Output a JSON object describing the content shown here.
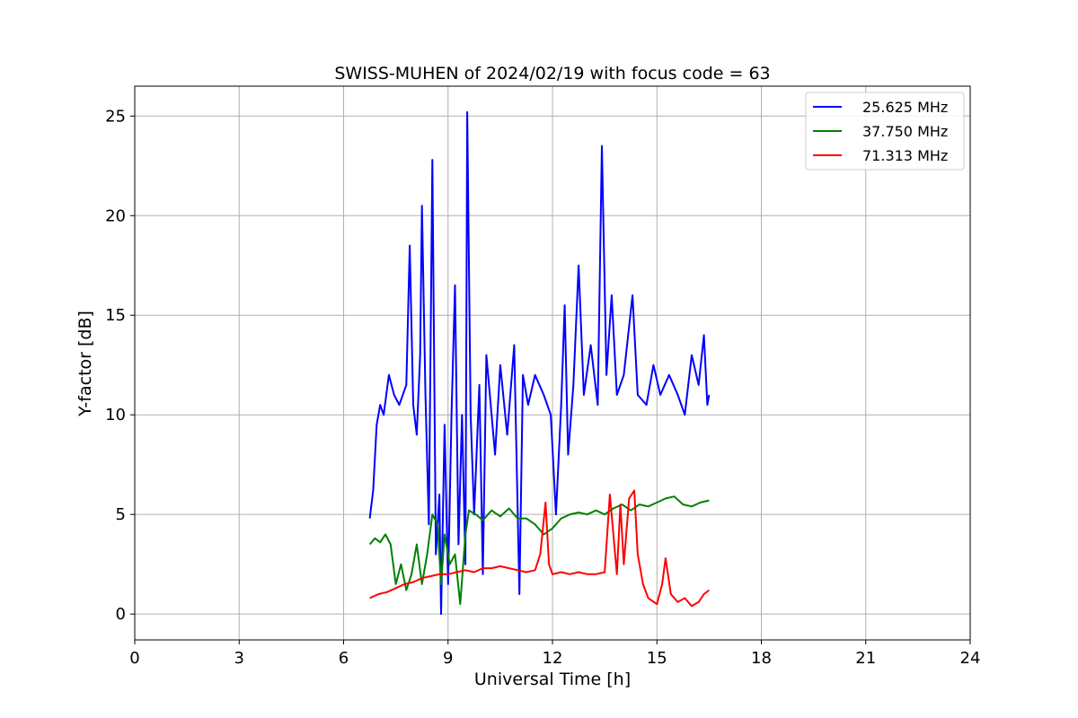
{
  "chart_data": {
    "type": "line",
    "title": "SWISS-MUHEN of 2024/02/19 with focus code = 63",
    "xlabel": "Universal Time [h]",
    "ylabel": "Y-factor [dB]",
    "xlim": [
      0,
      24
    ],
    "ylim": [
      -1.3,
      26.5
    ],
    "xticks": [
      0,
      3,
      6,
      9,
      12,
      15,
      18,
      21,
      24
    ],
    "yticks": [
      0,
      5,
      10,
      15,
      20,
      25
    ],
    "grid": true,
    "legend_position": "top-right",
    "series": [
      {
        "name": "25.625 MHz",
        "color": "#0000ff",
        "points": [
          [
            6.75,
            4.8
          ],
          [
            6.85,
            6.2
          ],
          [
            6.95,
            9.5
          ],
          [
            7.05,
            10.5
          ],
          [
            7.15,
            10.0
          ],
          [
            7.3,
            12.0
          ],
          [
            7.45,
            11.0
          ],
          [
            7.6,
            10.5
          ],
          [
            7.8,
            11.5
          ],
          [
            7.9,
            18.5
          ],
          [
            8.0,
            10.5
          ],
          [
            8.1,
            9.0
          ],
          [
            8.2,
            13.0
          ],
          [
            8.25,
            20.5
          ],
          [
            8.35,
            11.0
          ],
          [
            8.45,
            4.5
          ],
          [
            8.55,
            22.8
          ],
          [
            8.65,
            3.0
          ],
          [
            8.75,
            6.0
          ],
          [
            8.8,
            0.0
          ],
          [
            8.9,
            9.5
          ],
          [
            9.0,
            1.5
          ],
          [
            9.1,
            10.0
          ],
          [
            9.2,
            16.5
          ],
          [
            9.3,
            3.5
          ],
          [
            9.4,
            10.0
          ],
          [
            9.5,
            2.5
          ],
          [
            9.55,
            25.2
          ],
          [
            9.65,
            10.0
          ],
          [
            9.75,
            5.0
          ],
          [
            9.9,
            11.5
          ],
          [
            10.0,
            2.0
          ],
          [
            10.1,
            13.0
          ],
          [
            10.2,
            11.0
          ],
          [
            10.35,
            8.0
          ],
          [
            10.5,
            12.5
          ],
          [
            10.7,
            9.0
          ],
          [
            10.9,
            13.5
          ],
          [
            11.05,
            1.0
          ],
          [
            11.15,
            12.0
          ],
          [
            11.3,
            10.5
          ],
          [
            11.5,
            12.0
          ],
          [
            11.75,
            11.0
          ],
          [
            11.95,
            10.0
          ],
          [
            12.1,
            5.0
          ],
          [
            12.25,
            10.5
          ],
          [
            12.35,
            15.5
          ],
          [
            12.45,
            8.0
          ],
          [
            12.6,
            11.5
          ],
          [
            12.75,
            17.5
          ],
          [
            12.9,
            11.0
          ],
          [
            13.1,
            13.5
          ],
          [
            13.3,
            10.5
          ],
          [
            13.42,
            23.5
          ],
          [
            13.55,
            12.0
          ],
          [
            13.7,
            16.0
          ],
          [
            13.85,
            11.0
          ],
          [
            14.05,
            12.0
          ],
          [
            14.3,
            16.0
          ],
          [
            14.45,
            11.0
          ],
          [
            14.7,
            10.5
          ],
          [
            14.9,
            12.5
          ],
          [
            15.1,
            11.0
          ],
          [
            15.35,
            12.0
          ],
          [
            15.6,
            11.0
          ],
          [
            15.8,
            10.0
          ],
          [
            16.0,
            13.0
          ],
          [
            16.2,
            11.5
          ],
          [
            16.35,
            14.0
          ],
          [
            16.45,
            10.5
          ],
          [
            16.5,
            11.0
          ]
        ]
      },
      {
        "name": "37.750 MHz",
        "color": "#008000",
        "points": [
          [
            6.75,
            3.5
          ],
          [
            6.9,
            3.8
          ],
          [
            7.05,
            3.6
          ],
          [
            7.2,
            4.0
          ],
          [
            7.35,
            3.5
          ],
          [
            7.5,
            1.5
          ],
          [
            7.65,
            2.5
          ],
          [
            7.8,
            1.2
          ],
          [
            7.95,
            2.0
          ],
          [
            8.1,
            3.5
          ],
          [
            8.25,
            1.5
          ],
          [
            8.4,
            3.0
          ],
          [
            8.55,
            5.0
          ],
          [
            8.7,
            4.5
          ],
          [
            8.8,
            1.5
          ],
          [
            8.9,
            4.0
          ],
          [
            9.05,
            2.5
          ],
          [
            9.2,
            3.0
          ],
          [
            9.35,
            0.5
          ],
          [
            9.5,
            4.0
          ],
          [
            9.6,
            5.2
          ],
          [
            9.8,
            5.0
          ],
          [
            10.0,
            4.7
          ],
          [
            10.25,
            5.2
          ],
          [
            10.5,
            4.9
          ],
          [
            10.75,
            5.3
          ],
          [
            11.0,
            4.8
          ],
          [
            11.25,
            4.8
          ],
          [
            11.5,
            4.5
          ],
          [
            11.75,
            4.0
          ],
          [
            12.0,
            4.3
          ],
          [
            12.25,
            4.8
          ],
          [
            12.5,
            5.0
          ],
          [
            12.75,
            5.1
          ],
          [
            13.0,
            5.0
          ],
          [
            13.25,
            5.2
          ],
          [
            13.5,
            5.0
          ],
          [
            13.75,
            5.3
          ],
          [
            14.0,
            5.5
          ],
          [
            14.25,
            5.2
          ],
          [
            14.5,
            5.5
          ],
          [
            14.75,
            5.4
          ],
          [
            15.0,
            5.6
          ],
          [
            15.25,
            5.8
          ],
          [
            15.5,
            5.9
          ],
          [
            15.75,
            5.5
          ],
          [
            16.0,
            5.4
          ],
          [
            16.25,
            5.6
          ],
          [
            16.5,
            5.7
          ]
        ]
      },
      {
        "name": "71.313 MHz",
        "color": "#ff0000",
        "points": [
          [
            6.75,
            0.8
          ],
          [
            7.0,
            1.0
          ],
          [
            7.25,
            1.1
          ],
          [
            7.5,
            1.3
          ],
          [
            7.75,
            1.5
          ],
          [
            8.0,
            1.6
          ],
          [
            8.25,
            1.8
          ],
          [
            8.5,
            1.9
          ],
          [
            8.75,
            2.0
          ],
          [
            9.0,
            2.0
          ],
          [
            9.25,
            2.1
          ],
          [
            9.5,
            2.2
          ],
          [
            9.75,
            2.1
          ],
          [
            10.0,
            2.3
          ],
          [
            10.25,
            2.3
          ],
          [
            10.5,
            2.4
          ],
          [
            10.75,
            2.3
          ],
          [
            11.0,
            2.2
          ],
          [
            11.25,
            2.1
          ],
          [
            11.5,
            2.2
          ],
          [
            11.65,
            3.0
          ],
          [
            11.8,
            5.6
          ],
          [
            11.9,
            2.5
          ],
          [
            12.0,
            2.0
          ],
          [
            12.25,
            2.1
          ],
          [
            12.5,
            2.0
          ],
          [
            12.75,
            2.1
          ],
          [
            13.0,
            2.0
          ],
          [
            13.25,
            2.0
          ],
          [
            13.5,
            2.1
          ],
          [
            13.65,
            6.0
          ],
          [
            13.75,
            4.0
          ],
          [
            13.85,
            2.0
          ],
          [
            13.95,
            5.5
          ],
          [
            14.05,
            2.5
          ],
          [
            14.2,
            5.8
          ],
          [
            14.35,
            6.2
          ],
          [
            14.45,
            3.0
          ],
          [
            14.6,
            1.5
          ],
          [
            14.75,
            0.8
          ],
          [
            15.0,
            0.5
          ],
          [
            15.15,
            1.5
          ],
          [
            15.25,
            2.8
          ],
          [
            15.4,
            1.0
          ],
          [
            15.6,
            0.6
          ],
          [
            15.8,
            0.8
          ],
          [
            16.0,
            0.4
          ],
          [
            16.2,
            0.6
          ],
          [
            16.35,
            1.0
          ],
          [
            16.5,
            1.2
          ]
        ]
      }
    ]
  }
}
